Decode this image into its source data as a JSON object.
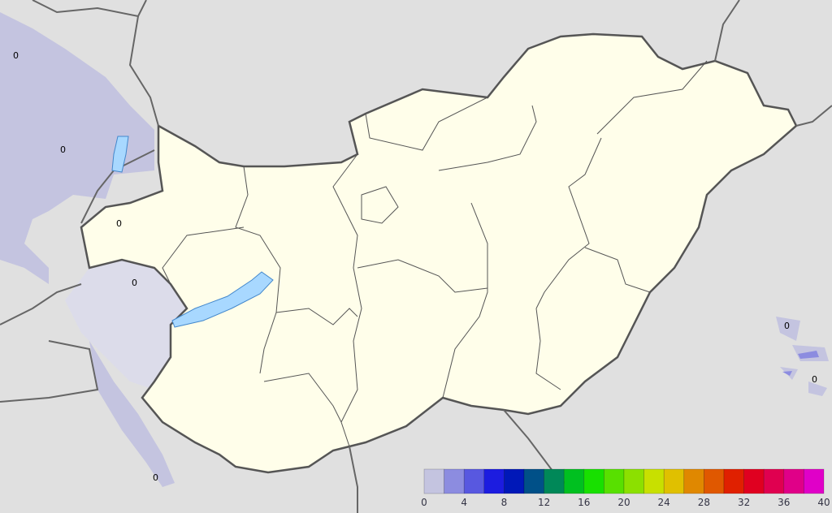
{
  "map": {
    "contour_labels": [
      "0",
      "0",
      "0",
      "0",
      "0",
      "0",
      "0"
    ],
    "colors": {
      "background": "#e0e0e0",
      "country_fill": "#fffeea",
      "lake": "#a8d8ff",
      "border": "#555555"
    }
  },
  "legend": {
    "ticks": [
      "0",
      "4",
      "8",
      "12",
      "16",
      "20",
      "24",
      "28",
      "32",
      "36",
      "40"
    ],
    "bins": [
      "#c4c4e0",
      "#8c8ce0",
      "#5858e0",
      "#1c1ce0",
      "#0018b8",
      "#005088",
      "#008858",
      "#00c020",
      "#18e000",
      "#58e000",
      "#8ce000",
      "#c8e000",
      "#e0c000",
      "#e08800",
      "#e05800",
      "#e02000",
      "#e00020",
      "#e00050",
      "#e00088",
      "#e000c8"
    ]
  }
}
